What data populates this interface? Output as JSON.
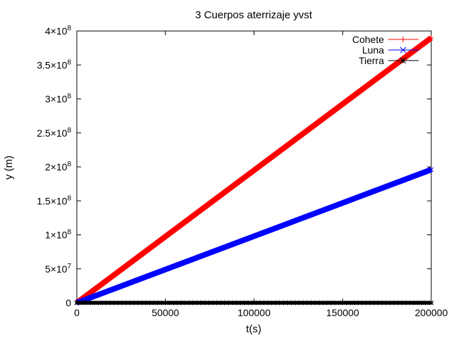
{
  "chart_data": {
    "type": "line",
    "title": "3 Cuerpos aterrizaje yvst",
    "xlabel": "t(s)",
    "ylabel": "y (m)",
    "xlim": [
      0,
      200000
    ],
    "ylim": [
      0,
      400000000
    ],
    "x_ticks": [
      {
        "value": 0,
        "label": "0"
      },
      {
        "value": 50000,
        "label": "50000"
      },
      {
        "value": 100000,
        "label": "100000"
      },
      {
        "value": 150000,
        "label": "150000"
      },
      {
        "value": 200000,
        "label": "200000"
      }
    ],
    "y_ticks": [
      {
        "value": 0,
        "mant": "0",
        "exp": ""
      },
      {
        "value": 50000000,
        "mant": "5×10",
        "exp": "7"
      },
      {
        "value": 100000000,
        "mant": "1×10",
        "exp": "8"
      },
      {
        "value": 150000000,
        "mant": "1.5×10",
        "exp": "8"
      },
      {
        "value": 200000000,
        "mant": "2×10",
        "exp": "8"
      },
      {
        "value": 250000000,
        "mant": "2.5×10",
        "exp": "8"
      },
      {
        "value": 300000000,
        "mant": "3×10",
        "exp": "8"
      },
      {
        "value": 350000000,
        "mant": "3.5×10",
        "exp": "8"
      },
      {
        "value": 400000000,
        "mant": "4×10",
        "exp": "8"
      }
    ],
    "grid": false,
    "legend_position": "top-right",
    "series": [
      {
        "name": "Cohete",
        "color": "#ff0000",
        "marker": "plus",
        "x": [
          0,
          200000
        ],
        "y": [
          0,
          390000000
        ]
      },
      {
        "name": "Luna",
        "color": "#0000ff",
        "marker": "x",
        "x": [
          0,
          200000
        ],
        "y": [
          0,
          196000000
        ]
      },
      {
        "name": "Tierra",
        "color": "#000000",
        "marker": "star",
        "x": [
          0,
          200000
        ],
        "y": [
          0,
          0
        ]
      }
    ]
  }
}
